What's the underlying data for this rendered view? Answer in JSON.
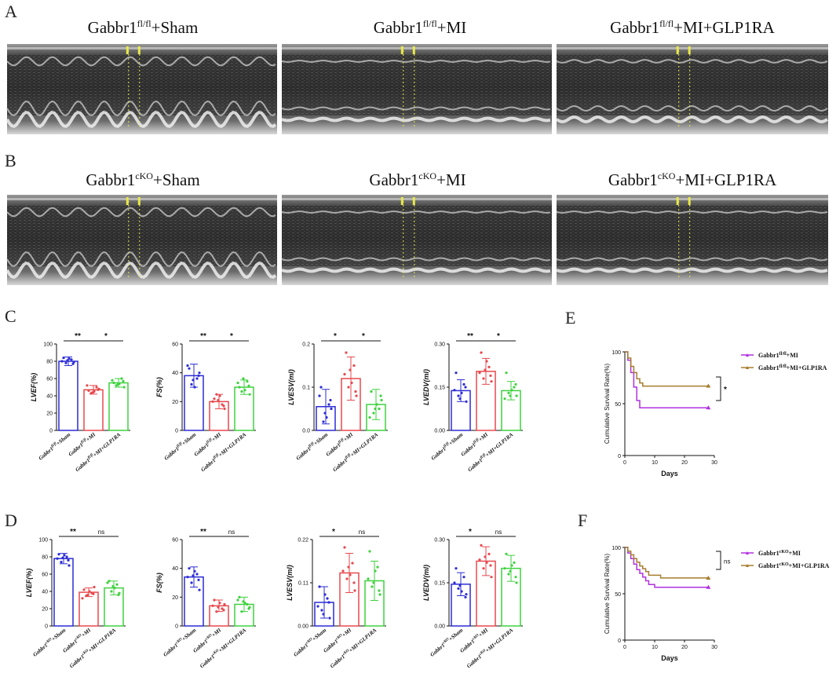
{
  "panels": {
    "A": {
      "letter": "A",
      "titles": [
        {
          "base": "Gabbr1",
          "sup": "fl/fl",
          "rest": "+Sham"
        },
        {
          "base": "Gabbr1",
          "sup": "fl/fl",
          "rest": "+MI"
        },
        {
          "base": "Gabbr1",
          "sup": "fl/fl",
          "rest": "+MI+GLP1RA"
        }
      ]
    },
    "B": {
      "letter": "B",
      "titles": [
        {
          "base": "Gabbr1",
          "sup": "cKO",
          "rest": "+Sham"
        },
        {
          "base": "Gabbr1",
          "sup": "cKO",
          "rest": "+MI"
        },
        {
          "base": "Gabbr1",
          "sup": "cKO",
          "rest": "+MI+GLP1RA"
        }
      ]
    },
    "C": {
      "letter": "C"
    },
    "D": {
      "letter": "D"
    },
    "E": {
      "letter": "E"
    },
    "F": {
      "letter": "F"
    }
  },
  "colors": {
    "blue": "#2b2bd6",
    "red": "#e8484d",
    "green": "#3ed23e",
    "purple": "#b131e0",
    "brown": "#a67c2e",
    "yellow": "#e8e84a"
  },
  "chart_data": [
    {
      "id": "C1",
      "type": "bar",
      "ylabel": "LVEF(%)",
      "ylim": [
        0,
        100
      ],
      "yticks": [
        "0",
        "20",
        "40",
        "60",
        "80",
        "100"
      ],
      "categories": [
        {
          "base": "Gabbr1",
          "sup": "fl/fl",
          "rest": "+Sham"
        },
        {
          "base": "Gabbr1",
          "sup": "fl/fl",
          "rest": "+MI"
        },
        {
          "base": "Gabbr1",
          "sup": "fl/fl",
          "rest": "+MI+GLP1RA"
        }
      ],
      "values": [
        80,
        47,
        55
      ],
      "errors": [
        5,
        5,
        5
      ],
      "points": [
        [
          84,
          82,
          78,
          79,
          80,
          83,
          77,
          81
        ],
        [
          46,
          50,
          43,
          48,
          52,
          45,
          47,
          44
        ],
        [
          55,
          60,
          52,
          50,
          58,
          54,
          57,
          53
        ]
      ],
      "sig": [
        "**",
        "*"
      ]
    },
    {
      "id": "C2",
      "type": "bar",
      "ylabel": "FS(%)",
      "ylim": [
        0,
        60
      ],
      "yticks": [
        "0",
        "20",
        "40",
        "60"
      ],
      "categories": [
        {
          "base": "Gabbr1",
          "sup": "fl/fl",
          "rest": "+Sham"
        },
        {
          "base": "Gabbr1",
          "sup": "fl/fl",
          "rest": "+MI"
        },
        {
          "base": "Gabbr1",
          "sup": "fl/fl",
          "rest": "+MI+GLP1RA"
        }
      ],
      "values": [
        38,
        20,
        30
      ],
      "errors": [
        8,
        5,
        5
      ],
      "points": [
        [
          43,
          36,
          32,
          40,
          45,
          30,
          38,
          35
        ],
        [
          22,
          18,
          25,
          15,
          20,
          24,
          17,
          21
        ],
        [
          30,
          34,
          27,
          25,
          33,
          28,
          31,
          36
        ]
      ],
      "sig": [
        "**",
        "*"
      ]
    },
    {
      "id": "C3",
      "type": "bar",
      "ylabel": "LVESV(ml)",
      "ylim": [
        0,
        0.2
      ],
      "yticks": [
        "0.0",
        "0.1",
        "0.2"
      ],
      "categories": [
        {
          "base": "Gabbr1",
          "sup": "fl/fl",
          "rest": "+Sham"
        },
        {
          "base": "Gabbr1",
          "sup": "fl/fl",
          "rest": "+MI"
        },
        {
          "base": "Gabbr1",
          "sup": "fl/fl",
          "rest": "+MI+GLP1RA"
        }
      ],
      "values": [
        0.055,
        0.12,
        0.06
      ],
      "errors": [
        0.04,
        0.05,
        0.035
      ],
      "points": [
        [
          0.1,
          0.06,
          0.02,
          0.05,
          0.08,
          0.03,
          0.07,
          0.04
        ],
        [
          0.18,
          0.15,
          0.1,
          0.08,
          0.13,
          0.11,
          0.09,
          0.14
        ],
        [
          0.09,
          0.05,
          0.04,
          0.07,
          0.03,
          0.06,
          0.08,
          0.05
        ]
      ],
      "sig": [
        "*",
        "*"
      ]
    },
    {
      "id": "C4",
      "type": "bar",
      "ylabel": "LVEDV(ml)",
      "ylim": [
        0,
        0.3
      ],
      "yticks": [
        "0.00",
        "0.15",
        "0.30"
      ],
      "categories": [
        {
          "base": "Gabbr1",
          "sup": "fl/fl",
          "rest": "+Sham"
        },
        {
          "base": "Gabbr1",
          "sup": "fl/fl",
          "rest": "+MI"
        },
        {
          "base": "Gabbr1",
          "sup": "fl/fl",
          "rest": "+MI+GLP1RA"
        }
      ],
      "values": [
        0.138,
        0.205,
        0.138
      ],
      "errors": [
        0.038,
        0.045,
        0.032
      ],
      "points": [
        [
          0.2,
          0.16,
          0.12,
          0.1,
          0.14,
          0.13,
          0.15,
          0.11
        ],
        [
          0.27,
          0.22,
          0.18,
          0.17,
          0.2,
          0.24,
          0.19,
          0.21
        ],
        [
          0.2,
          0.15,
          0.13,
          0.12,
          0.11,
          0.14,
          0.16,
          0.12
        ]
      ],
      "sig": [
        "**",
        "*"
      ]
    },
    {
      "id": "D1",
      "type": "bar",
      "ylabel": "LVEF(%)",
      "ylim": [
        0,
        100
      ],
      "yticks": [
        "0",
        "20",
        "40",
        "60",
        "80",
        "100"
      ],
      "categories": [
        {
          "base": "Gabbr1",
          "sup": "cKO",
          "rest": "+Sham"
        },
        {
          "base": "Gabbr1",
          "sup": "cKO",
          "rest": "+MI"
        },
        {
          "base": "Gabbr1",
          "sup": "cKO",
          "rest": "+MI+GLP1RA"
        }
      ],
      "values": [
        78,
        39,
        44
      ],
      "errors": [
        6,
        5,
        8
      ],
      "points": [
        [
          83,
          80,
          74,
          70,
          78,
          82,
          76,
          79
        ],
        [
          42,
          38,
          35,
          45,
          32,
          40,
          37,
          36
        ],
        [
          52,
          48,
          40,
          38,
          50,
          44,
          36,
          46
        ]
      ],
      "sig": [
        "**",
        "ns"
      ]
    },
    {
      "id": "D2",
      "type": "bar",
      "ylabel": "FS(%)",
      "ylim": [
        0,
        60
      ],
      "yticks": [
        "0",
        "20",
        "40",
        "60"
      ],
      "categories": [
        {
          "base": "Gabbr1",
          "sup": "cKO",
          "rest": "+Sham"
        },
        {
          "base": "Gabbr1",
          "sup": "cKO",
          "rest": "+MI"
        },
        {
          "base": "Gabbr1",
          "sup": "cKO",
          "rest": "+MI+GLP1RA"
        }
      ],
      "values": [
        34,
        14,
        15
      ],
      "errors": [
        7,
        4,
        5
      ],
      "points": [
        [
          40,
          36,
          30,
          25,
          34,
          38,
          32,
          35
        ],
        [
          18,
          12,
          10,
          15,
          14,
          16,
          11,
          13
        ],
        [
          20,
          15,
          10,
          13,
          18,
          16,
          12,
          17
        ]
      ],
      "sig": [
        "**",
        "ns"
      ]
    },
    {
      "id": "D3",
      "type": "bar",
      "ylabel": "LVESV(ml)",
      "ylim": [
        0,
        0.22
      ],
      "yticks": [
        "0.00",
        "0.11",
        "0.22"
      ],
      "categories": [
        {
          "base": "Gabbr1",
          "sup": "cKO",
          "rest": "+Sham"
        },
        {
          "base": "Gabbr1",
          "sup": "cKO",
          "rest": "+MI"
        },
        {
          "base": "Gabbr1",
          "sup": "cKO",
          "rest": "+MI+GLP1RA"
        }
      ],
      "values": [
        0.06,
        0.135,
        0.115
      ],
      "errors": [
        0.04,
        0.05,
        0.05
      ],
      "points": [
        [
          0.1,
          0.07,
          0.04,
          0.02,
          0.05,
          0.08,
          0.06,
          0.03
        ],
        [
          0.2,
          0.16,
          0.12,
          0.09,
          0.14,
          0.13,
          0.11,
          0.15
        ],
        [
          0.19,
          0.15,
          0.1,
          0.08,
          0.12,
          0.14,
          0.09,
          0.11
        ]
      ],
      "sig": [
        "*",
        "ns"
      ]
    },
    {
      "id": "D4",
      "type": "bar",
      "ylabel": "LVEDV(ml)",
      "ylim": [
        0,
        0.3
      ],
      "yticks": [
        "0.00",
        "0.15",
        "0.30"
      ],
      "categories": [
        {
          "base": "Gabbr1",
          "sup": "cKO",
          "rest": "+Sham"
        },
        {
          "base": "Gabbr1",
          "sup": "cKO",
          "rest": "+MI"
        },
        {
          "base": "Gabbr1",
          "sup": "cKO",
          "rest": "+MI+GLP1RA"
        }
      ],
      "values": [
        0.145,
        0.225,
        0.2
      ],
      "errors": [
        0.04,
        0.05,
        0.045
      ],
      "points": [
        [
          0.2,
          0.17,
          0.13,
          0.11,
          0.15,
          0.12,
          0.1,
          0.14
        ],
        [
          0.28,
          0.25,
          0.2,
          0.17,
          0.23,
          0.22,
          0.21,
          0.24
        ],
        [
          0.25,
          0.22,
          0.18,
          0.15,
          0.2,
          0.21,
          0.17,
          0.19
        ]
      ],
      "sig": [
        "*",
        "ns"
      ]
    },
    {
      "id": "E",
      "type": "line",
      "ylabel": "Cumulative Survival Rate(%)",
      "xlabel": "Days",
      "ylim": [
        0,
        100
      ],
      "xlim": [
        0,
        30
      ],
      "yticks": [
        "0",
        "50",
        "100"
      ],
      "xticks": [
        "0",
        "10",
        "20",
        "30"
      ],
      "series": [
        {
          "name": {
            "base": "Gabbr1",
            "sup": "fl/fl",
            "rest": "+MI"
          },
          "color": "purple",
          "x": [
            0,
            1,
            1,
            2,
            2,
            3,
            3,
            4,
            4,
            5,
            5,
            28
          ],
          "y": [
            100,
            100,
            92,
            92,
            80,
            80,
            66,
            66,
            53,
            53,
            46,
            46
          ]
        },
        {
          "name": {
            "base": "Gabbr1",
            "sup": "fl/fl",
            "rest": "+MI+GLP1RA"
          },
          "color": "brown",
          "x": [
            0,
            1,
            1,
            2,
            2,
            3,
            3,
            4,
            4,
            5,
            5,
            6,
            6,
            28
          ],
          "y": [
            100,
            100,
            94,
            94,
            86,
            86,
            80,
            80,
            74,
            74,
            70,
            70,
            67,
            67
          ]
        }
      ],
      "sig": "*"
    },
    {
      "id": "F",
      "type": "line",
      "ylabel": "Cumulative Survival Rate(%)",
      "xlabel": "Days",
      "ylim": [
        0,
        100
      ],
      "xlim": [
        0,
        30
      ],
      "yticks": [
        "0",
        "50",
        "100"
      ],
      "xticks": [
        "0",
        "10",
        "20",
        "30"
      ],
      "series": [
        {
          "name": {
            "base": "Gabbr1",
            "sup": "cKO",
            "rest": "+MI"
          },
          "color": "purple",
          "x": [
            0,
            1,
            1,
            2,
            2,
            3,
            3,
            4,
            4,
            5,
            5,
            6,
            6,
            7,
            7,
            8,
            8,
            10,
            10,
            28
          ],
          "y": [
            100,
            100,
            94,
            94,
            88,
            88,
            82,
            82,
            76,
            76,
            72,
            72,
            68,
            68,
            64,
            64,
            60,
            60,
            57,
            57
          ]
        },
        {
          "name": {
            "base": "Gabbr1",
            "sup": "cKO",
            "rest": "+MI+GLP1RA"
          },
          "color": "brown",
          "x": [
            0,
            1,
            1,
            2,
            2,
            3,
            3,
            4,
            4,
            5,
            5,
            6,
            6,
            7,
            7,
            8,
            8,
            12,
            12,
            28
          ],
          "y": [
            100,
            100,
            96,
            96,
            92,
            92,
            88,
            88,
            84,
            84,
            80,
            80,
            77,
            77,
            74,
            74,
            70,
            70,
            67,
            67
          ]
        }
      ],
      "sig": "ns"
    }
  ]
}
